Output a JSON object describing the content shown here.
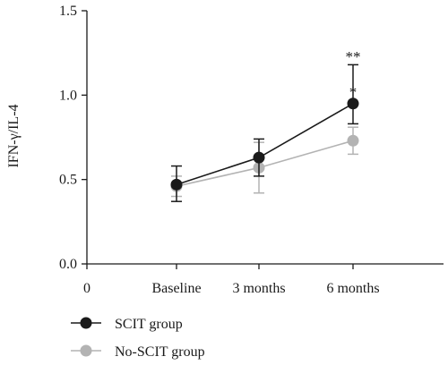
{
  "chart_data": {
    "type": "line",
    "title": "",
    "xlabel": "",
    "ylabel": "IFN-γ/IL-4",
    "x_origin_label": "0",
    "categories": [
      "Baseline",
      "3 months",
      "6 months"
    ],
    "ylim": [
      0,
      1.5
    ],
    "yticks": [
      0.0,
      0.5,
      1.0,
      1.5
    ],
    "ytick_labels": [
      "0.0",
      "0.5",
      "1.0",
      "1.5"
    ],
    "grid": false,
    "legend_position": "bottom-left",
    "series": [
      {
        "name": "SCIT group",
        "color": "#1a1a1a",
        "values": [
          0.47,
          0.63,
          0.95
        ],
        "err_low": [
          0.1,
          0.11,
          0.12
        ],
        "err_high": [
          0.11,
          0.11,
          0.23
        ]
      },
      {
        "name": "No-SCIT group",
        "color": "#b3b3b3",
        "values": [
          0.46,
          0.57,
          0.73
        ],
        "err_low": [
          0.06,
          0.15,
          0.08
        ],
        "err_high": [
          0.06,
          0.15,
          0.08
        ]
      }
    ],
    "annotations": [
      {
        "category_index": 2,
        "text": "**",
        "y": 1.23
      },
      {
        "category_index": 2,
        "text": "*",
        "y": 1.02
      }
    ]
  }
}
